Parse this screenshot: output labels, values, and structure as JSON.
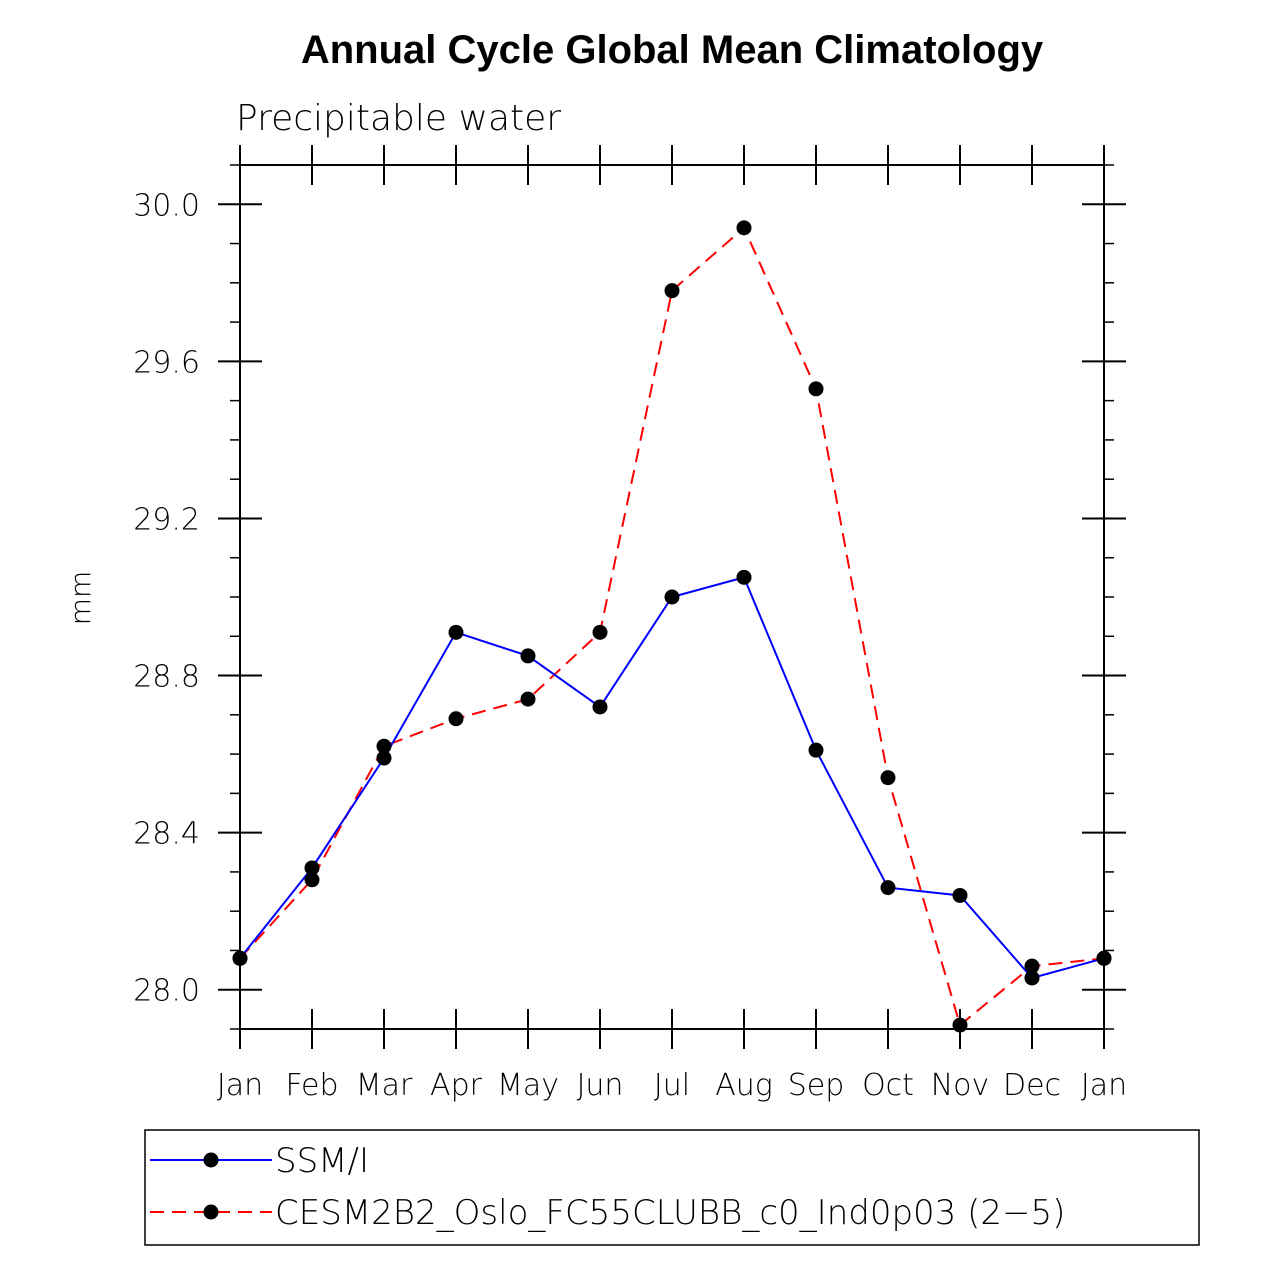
{
  "chart_data": {
    "type": "line",
    "title": "Annual Cycle Global Mean Climatology",
    "subtitle": "Precipitable water",
    "xlabel": "",
    "ylabel": "mm",
    "categories": [
      "Jan",
      "Feb",
      "Mar",
      "Apr",
      "May",
      "Jun",
      "Jul",
      "Aug",
      "Sep",
      "Oct",
      "Nov",
      "Dec",
      "Jan"
    ],
    "ylim": [
      27.9,
      30.1
    ],
    "yticks": [
      28.0,
      28.4,
      28.8,
      29.2,
      29.6,
      30.0
    ],
    "ytick_labels": [
      "28.0",
      "28.4",
      "28.8",
      "29.2",
      "29.6",
      "30.0"
    ],
    "yminor_step": 0.1,
    "grid": false,
    "legend_position": "bottom",
    "series": [
      {
        "name": "SSM/I",
        "color": "#0000ff",
        "style": "solid",
        "marker": "circle",
        "values": [
          28.08,
          28.31,
          28.59,
          28.91,
          28.85,
          28.72,
          29.0,
          29.05,
          28.61,
          28.26,
          28.24,
          28.03,
          28.08
        ]
      },
      {
        "name": "CESM2B2_Oslo_FC55CLUBB_c0_Ind0p03 (2−5)",
        "color": "#ff0000",
        "style": "dashed",
        "marker": "circle",
        "values": [
          28.08,
          28.28,
          28.62,
          28.69,
          28.74,
          28.91,
          29.78,
          29.94,
          29.53,
          28.54,
          27.91,
          28.06,
          28.08
        ]
      }
    ]
  }
}
